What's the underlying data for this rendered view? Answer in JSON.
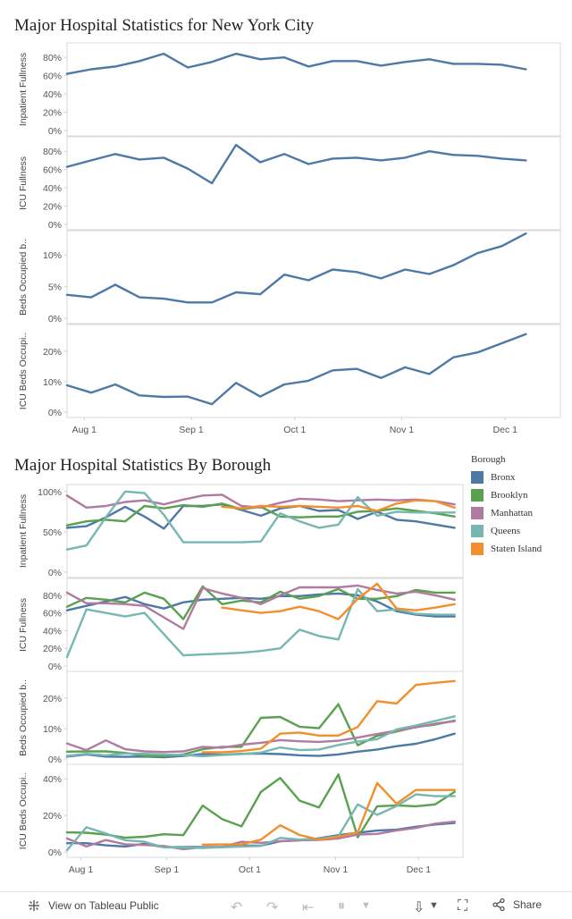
{
  "titles": {
    "city": "Major Hospital Statistics for New York City",
    "borough": "Major Hospital Statistics By Borough"
  },
  "footer": {
    "view_label": "View on Tableau Public",
    "share_label": "Share"
  },
  "legend": {
    "title": "Borough",
    "items": [
      {
        "name": "Bronx",
        "color": "#4e79a7"
      },
      {
        "name": "Brooklyn",
        "color": "#59a14f"
      },
      {
        "name": "Manhattan",
        "color": "#b07aa1"
      },
      {
        "name": "Queens",
        "color": "#76b7b2"
      },
      {
        "name": "Staten Island",
        "color": "#f28e2b"
      }
    ]
  },
  "chart_data": [
    {
      "type": "line",
      "title": "Major Hospital Statistics for New York City",
      "x_labels": [
        "Aug 1",
        "Sep 1",
        "Oct 1",
        "Nov 1",
        "Dec 1"
      ],
      "x_range": [
        "2021-07-27",
        "2021-12-17"
      ],
      "dates": [
        "2021-07-27",
        "2021-08-03",
        "2021-08-10",
        "2021-08-17",
        "2021-08-24",
        "2021-08-31",
        "2021-09-07",
        "2021-09-14",
        "2021-09-21",
        "2021-09-28",
        "2021-10-05",
        "2021-10-12",
        "2021-10-19",
        "2021-10-26",
        "2021-11-02",
        "2021-11-09",
        "2021-11-16",
        "2021-11-23",
        "2021-11-30",
        "2021-12-07",
        "2021-12-14"
      ],
      "panels": [
        {
          "ylabel": "Inpatient Fullness",
          "ylim": [
            0,
            90
          ],
          "yticks": [
            "0%",
            "20%",
            "40%",
            "60%",
            "80%"
          ],
          "series": [
            {
              "color": "#4e79a7",
              "values": [
                62,
                67,
                70,
                76,
                84,
                69,
                75,
                84,
                78,
                80,
                70,
                76,
                76,
                71,
                75,
                78,
                73,
                73,
                72,
                67,
                null
              ]
            }
          ]
        },
        {
          "ylabel": "ICU Fullness",
          "ylim": [
            0,
            90
          ],
          "yticks": [
            "0%",
            "20%",
            "40%",
            "60%",
            "80%"
          ],
          "series": [
            {
              "color": "#4e79a7",
              "values": [
                63,
                70,
                77,
                71,
                73,
                61,
                45,
                87,
                68,
                77,
                66,
                72,
                73,
                70,
                73,
                80,
                76,
                75,
                72,
                70,
                null
              ]
            }
          ]
        },
        {
          "ylabel": "Beds Occupied b..",
          "ylim": [
            0,
            13
          ],
          "yticks": [
            "0%",
            "5%",
            "10%"
          ],
          "series": [
            {
              "color": "#4e79a7",
              "values": [
                3.7,
                3.3,
                5.3,
                3.3,
                3.1,
                2.5,
                2.5,
                4.1,
                3.8,
                6.9,
                6.0,
                7.7,
                7.3,
                6.3,
                7.7,
                7.0,
                8.4,
                10.3,
                11.4,
                13.4,
                null
              ]
            }
          ]
        },
        {
          "ylabel": "ICU Beds Occupi..",
          "ylim": [
            0,
            27
          ],
          "yticks": [
            "0%",
            "10%",
            "20%"
          ],
          "series": [
            {
              "color": "#4e79a7",
              "values": [
                8.8,
                6.4,
                9.1,
                5.5,
                5.0,
                5.1,
                2.6,
                9.6,
                5.1,
                9.1,
                10.3,
                13.7,
                14.2,
                11.2,
                14.7,
                12.5,
                18.0,
                19.6,
                22.6,
                25.6,
                null
              ]
            }
          ]
        }
      ]
    },
    {
      "type": "line",
      "title": "Major Hospital Statistics By Borough",
      "x_labels": [
        "Aug 1",
        "Sep 1",
        "Oct 1",
        "Nov 1",
        "Dec 1"
      ],
      "x_range": [
        "2021-07-27",
        "2021-12-17"
      ],
      "dates": [
        "2021-07-27",
        "2021-08-03",
        "2021-08-10",
        "2021-08-17",
        "2021-08-24",
        "2021-08-31",
        "2021-09-07",
        "2021-09-14",
        "2021-09-21",
        "2021-09-28",
        "2021-10-05",
        "2021-10-12",
        "2021-10-19",
        "2021-10-26",
        "2021-11-02",
        "2021-11-09",
        "2021-11-16",
        "2021-11-23",
        "2021-11-30",
        "2021-12-07",
        "2021-12-14"
      ],
      "panels": [
        {
          "ylabel": "Inpatient Fullness",
          "ylim": [
            0,
            102
          ],
          "yticks": [
            "0%",
            "50%",
            "100%"
          ],
          "series": [
            {
              "name": "Bronx",
              "color": "#4e79a7",
              "values": [
                55,
                57,
                68,
                81,
                69,
                54,
                82,
                82,
                84,
                77,
                70,
                79,
                82,
                76,
                77,
                66,
                75,
                65,
                63,
                59,
                55
              ]
            },
            {
              "name": "Brooklyn",
              "color": "#59a14f",
              "values": [
                58,
                63,
                65,
                63,
                82,
                79,
                83,
                81,
                85,
                78,
                81,
                69,
                68,
                69,
                69,
                75,
                76,
                79,
                76,
                73,
                69
              ]
            },
            {
              "name": "Manhattan",
              "color": "#b07aa1",
              "values": [
                95,
                80,
                82,
                87,
                89,
                84,
                90,
                95,
                96,
                82,
                80,
                86,
                91,
                90,
                88,
                89,
                90,
                89,
                90,
                88,
                84
              ]
            },
            {
              "name": "Queens",
              "color": "#76b7b2",
              "values": [
                28,
                33,
                68,
                100,
                98,
                71,
                37,
                37,
                37,
                37,
                38,
                73,
                63,
                55,
                59,
                93,
                70,
                75,
                74,
                74,
                74
              ]
            },
            {
              "name": "Staten Island",
              "color": "#f28e2b",
              "values": [
                null,
                null,
                null,
                null,
                null,
                null,
                null,
                null,
                81,
                79,
                82,
                81,
                82,
                81,
                80,
                82,
                76,
                85,
                89,
                88,
                80
              ]
            }
          ]
        },
        {
          "ylabel": "ICU Fullness",
          "ylim": [
            0,
            93
          ],
          "yticks": [
            "0%",
            "20%",
            "40%",
            "60%",
            "80%"
          ],
          "series": [
            {
              "name": "Bronx",
              "color": "#4e79a7",
              "values": [
                63,
                68,
                73,
                78,
                70,
                65,
                72,
                75,
                76,
                77,
                76,
                79,
                79,
                81,
                82,
                80,
                73,
                62,
                58,
                56,
                56
              ]
            },
            {
              "name": "Brooklyn",
              "color": "#59a14f",
              "values": [
                67,
                77,
                75,
                72,
                83,
                76,
                53,
                90,
                70,
                74,
                72,
                84,
                76,
                79,
                87,
                76,
                76,
                79,
                86,
                83,
                83
              ]
            },
            {
              "name": "Manhattan",
              "color": "#b07aa1",
              "values": [
                83,
                71,
                71,
                70,
                68,
                55,
                42,
                88,
                82,
                77,
                70,
                80,
                89,
                89,
                89,
                91,
                86,
                82,
                84,
                80,
                75
              ]
            },
            {
              "name": "Queens",
              "color": "#76b7b2",
              "values": [
                10,
                64,
                60,
                56,
                60,
                36,
                12,
                13,
                14,
                15,
                17,
                20,
                41,
                34,
                30,
                87,
                62,
                64,
                59,
                58,
                58
              ]
            },
            {
              "name": "Staten Island",
              "color": "#f28e2b",
              "values": [
                null,
                null,
                null,
                null,
                null,
                null,
                null,
                null,
                66,
                63,
                60,
                62,
                67,
                62,
                53,
                76,
                93,
                65,
                63,
                66,
                70
              ]
            }
          ]
        },
        {
          "ylabel": "Beds Occupied b..",
          "ylim": [
            0,
            27
          ],
          "yticks": [
            "0%",
            "10%",
            "20%"
          ],
          "series": [
            {
              "name": "Bronx",
              "color": "#4e79a7",
              "values": [
                0.8,
                1.5,
                0.8,
                0.7,
                0.8,
                0.6,
                1.0,
                1.6,
                1.4,
                1.7,
                1.8,
                1.6,
                1.2,
                1.0,
                1.5,
                2.4,
                3.1,
                4.2,
                5.0,
                6.5,
                8.3
              ]
            },
            {
              "name": "Brooklyn",
              "color": "#59a14f",
              "values": [
                2.4,
                2.5,
                2.5,
                2.0,
                1.0,
                0.9,
                1.5,
                3.2,
                4.0,
                4.0,
                13.5,
                13.8,
                10.6,
                10.1,
                18.0,
                4.5,
                7.6,
                9.0,
                10.5,
                11.3,
                12.6
              ]
            },
            {
              "name": "Manhattan",
              "color": "#b07aa1",
              "values": [
                5.1,
                2.9,
                6.1,
                3.2,
                2.5,
                2.3,
                2.5,
                4.0,
                3.7,
                4.7,
                5.3,
                6.2,
                5.8,
                5.6,
                6.0,
                7.0,
                8.2,
                9.3,
                10.4,
                11.6,
                12.4
              ]
            },
            {
              "name": "Queens",
              "color": "#76b7b2",
              "values": [
                1.0,
                1.7,
                1.2,
                1.8,
                1.7,
                1.5,
                1.3,
                0.9,
                1.3,
                1.6,
                2.1,
                3.8,
                2.9,
                3.1,
                4.6,
                5.7,
                6.5,
                9.7,
                11.0,
                12.5,
                14.0
              ]
            },
            {
              "name": "Staten Island",
              "color": "#f28e2b",
              "values": [
                null,
                null,
                null,
                null,
                null,
                null,
                null,
                2.2,
                2.2,
                2.6,
                3.4,
                8.3,
                8.7,
                7.7,
                7.7,
                10.5,
                19.0,
                18.2,
                24.3,
                25.0,
                25.6
              ]
            }
          ]
        },
        {
          "ylabel": "ICU Beds Occupi..",
          "ylim": [
            0,
            45
          ],
          "yticks": [
            "0%",
            "20%",
            "40%"
          ],
          "series": [
            {
              "name": "Bronx",
              "color": "#4e79a7",
              "values": [
                4.8,
                4.8,
                3.6,
                3.0,
                4.5,
                2.6,
                2.7,
                2.7,
                2.7,
                3.5,
                3.4,
                5.8,
                6.3,
                7.5,
                9.2,
                10.5,
                11.7,
                12.2,
                13.8,
                15.0,
                15.9
              ]
            },
            {
              "name": "Brooklyn",
              "color": "#59a14f",
              "values": [
                10.7,
                10.5,
                9.5,
                7.8,
                8.3,
                9.7,
                9.2,
                25.4,
                18.0,
                14.0,
                32.8,
                40.5,
                28.1,
                24.3,
                42.4,
                8.0,
                25.0,
                25.5,
                25.0,
                26.0,
                32.9
              ]
            },
            {
              "name": "Manhattan",
              "color": "#b07aa1",
              "values": [
                7.4,
                3.0,
                6.5,
                4.2,
                3.8,
                3.3,
                1.5,
                2.6,
                2.8,
                5.6,
                5.0,
                5.9,
                6.4,
                6.6,
                7.4,
                9.5,
                9.9,
                11.8,
                13.1,
                15.5,
                16.6
              ]
            },
            {
              "name": "Queens",
              "color": "#76b7b2",
              "values": [
                1.0,
                13.5,
                10.1,
                6.4,
                5.6,
                2.5,
                2.5,
                2.2,
                2.6,
                3.0,
                3.3,
                7.7,
                6.8,
                7.2,
                8.6,
                26.0,
                20.3,
                25.1,
                31.5,
                30.5,
                30.5
              ]
            },
            {
              "name": "Staten Island",
              "color": "#f28e2b",
              "values": [
                null,
                null,
                null,
                null,
                null,
                null,
                null,
                4.0,
                4.1,
                4.2,
                6.7,
                14.6,
                9.3,
                6.7,
                8.3,
                10.7,
                37.7,
                26.4,
                33.9,
                33.9,
                33.9
              ]
            }
          ]
        }
      ]
    }
  ]
}
